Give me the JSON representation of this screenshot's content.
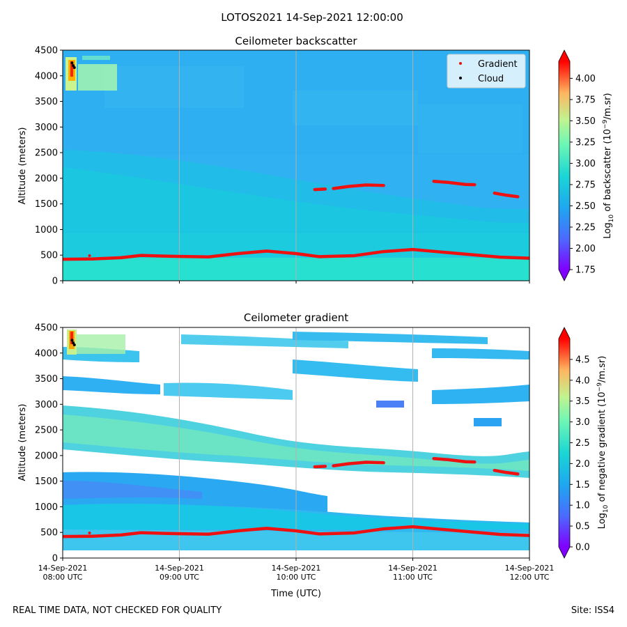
{
  "suptitle": "LOTOS2021 14-Sep-2021 12:00:00",
  "footer": {
    "left": "REAL TIME DATA, NOT CHECKED FOR QUALITY",
    "right": "Site: ISS4"
  },
  "colors": {
    "gradient_marker": "#ee1111",
    "cloud_marker": "#000000",
    "grid": "#b0b0b0"
  },
  "chart_data": [
    {
      "type": "heatmap",
      "title": "Ceilometer backscatter",
      "xlabel": "",
      "ylabel": "Altitude (meters)",
      "xlim": [
        8,
        12
      ],
      "ylim": [
        0,
        4500
      ],
      "yticks": [
        0,
        500,
        1000,
        1500,
        2000,
        2500,
        3000,
        3500,
        4000,
        4500
      ],
      "xtick_labels": [],
      "legend": {
        "position": "top-right",
        "entries": [
          "Gradient",
          "Cloud"
        ]
      },
      "colorbar": {
        "label_prefix": "Log",
        "label_sub": "10",
        "label_mid": " of backscatter (10",
        "label_sup": "−9",
        "label_suffix": "/m.sr)",
        "range": [
          1.75,
          4.2
        ],
        "ticks": [
          "1.75",
          "2.00",
          "2.25",
          "2.50",
          "2.75",
          "3.00",
          "3.25",
          "3.50",
          "3.75",
          "4.00"
        ],
        "tick_values": [
          1.75,
          2.0,
          2.25,
          2.5,
          2.75,
          3.0,
          3.25,
          3.5,
          3.75,
          4.0
        ]
      },
      "series": [
        {
          "name": "Gradient",
          "segments": [
            {
              "x": [
                8.0,
                8.25,
                8.5,
                8.67,
                8.9,
                9.25,
                9.5,
                9.75,
                10.0,
                10.2,
                10.5,
                10.75,
                11.0,
                11.25,
                11.5,
                11.75,
                12.0
              ],
              "y": [
                420,
                425,
                450,
                495,
                480,
                465,
                530,
                580,
                530,
                470,
                490,
                570,
                610,
                560,
                510,
                460,
                440
              ]
            },
            {
              "x": [
                10.16,
                10.25
              ],
              "y": [
                1780,
                1790
              ]
            },
            {
              "x": [
                10.32,
                10.45,
                10.6,
                10.75
              ],
              "y": [
                1800,
                1840,
                1870,
                1860
              ]
            },
            {
              "x": [
                11.18,
                11.3,
                11.45,
                11.53
              ],
              "y": [
                1940,
                1920,
                1880,
                1875
              ]
            },
            {
              "x": [
                11.7,
                11.8,
                11.9
              ],
              "y": [
                1710,
                1670,
                1640
              ]
            }
          ]
        },
        {
          "name": "Cloud",
          "x": [
            8.08,
            8.09,
            8.1
          ],
          "y": [
            4250,
            4200,
            4160
          ]
        }
      ]
    },
    {
      "type": "heatmap",
      "title": "Ceilometer gradient",
      "xlabel": "Time (UTC)",
      "ylabel": "Altitude (meters)",
      "xlim": [
        8,
        12
      ],
      "ylim": [
        0,
        4500
      ],
      "yticks": [
        0,
        500,
        1000,
        1500,
        2000,
        2500,
        3000,
        3500,
        4000,
        4500
      ],
      "xtick_labels": [
        [
          "14-Sep-2021",
          "08:00 UTC"
        ],
        [
          "14-Sep-2021",
          "09:00 UTC"
        ],
        [
          "14-Sep-2021",
          "10:00 UTC"
        ],
        [
          "14-Sep-2021",
          "11:00 UTC"
        ],
        [
          "14-Sep-2021",
          "12:00 UTC"
        ]
      ],
      "colorbar": {
        "label_prefix": "Log",
        "label_sub": "10",
        "label_mid": " of negative gradient (10",
        "label_sup": "−9",
        "label_suffix": "/m.sr)",
        "range": [
          0.0,
          5.0
        ],
        "ticks": [
          "0.0",
          "0.5",
          "1.0",
          "1.5",
          "2.0",
          "2.5",
          "3.0",
          "3.5",
          "4.0",
          "4.5"
        ],
        "tick_values": [
          0.0,
          0.5,
          1.0,
          1.5,
          2.0,
          2.5,
          3.0,
          3.5,
          4.0,
          4.5
        ]
      },
      "series": [
        {
          "name": "Gradient",
          "segments": [
            {
              "x": [
                8.0,
                8.25,
                8.5,
                8.67,
                8.9,
                9.25,
                9.5,
                9.75,
                10.0,
                10.2,
                10.5,
                10.75,
                11.0,
                11.25,
                11.5,
                11.75,
                12.0
              ],
              "y": [
                420,
                425,
                450,
                495,
                480,
                465,
                530,
                580,
                530,
                470,
                490,
                570,
                610,
                560,
                510,
                460,
                440
              ]
            },
            {
              "x": [
                10.16,
                10.25
              ],
              "y": [
                1780,
                1790
              ]
            },
            {
              "x": [
                10.32,
                10.45,
                10.6,
                10.75
              ],
              "y": [
                1800,
                1840,
                1870,
                1860
              ]
            },
            {
              "x": [
                11.18,
                11.3,
                11.45,
                11.53
              ],
              "y": [
                1940,
                1920,
                1880,
                1875
              ]
            },
            {
              "x": [
                11.7,
                11.8,
                11.9
              ],
              "y": [
                1710,
                1670,
                1640
              ]
            }
          ]
        },
        {
          "name": "Cloud",
          "x": [
            8.08,
            8.09,
            8.1
          ],
          "y": [
            4250,
            4200,
            4160
          ]
        }
      ]
    }
  ]
}
